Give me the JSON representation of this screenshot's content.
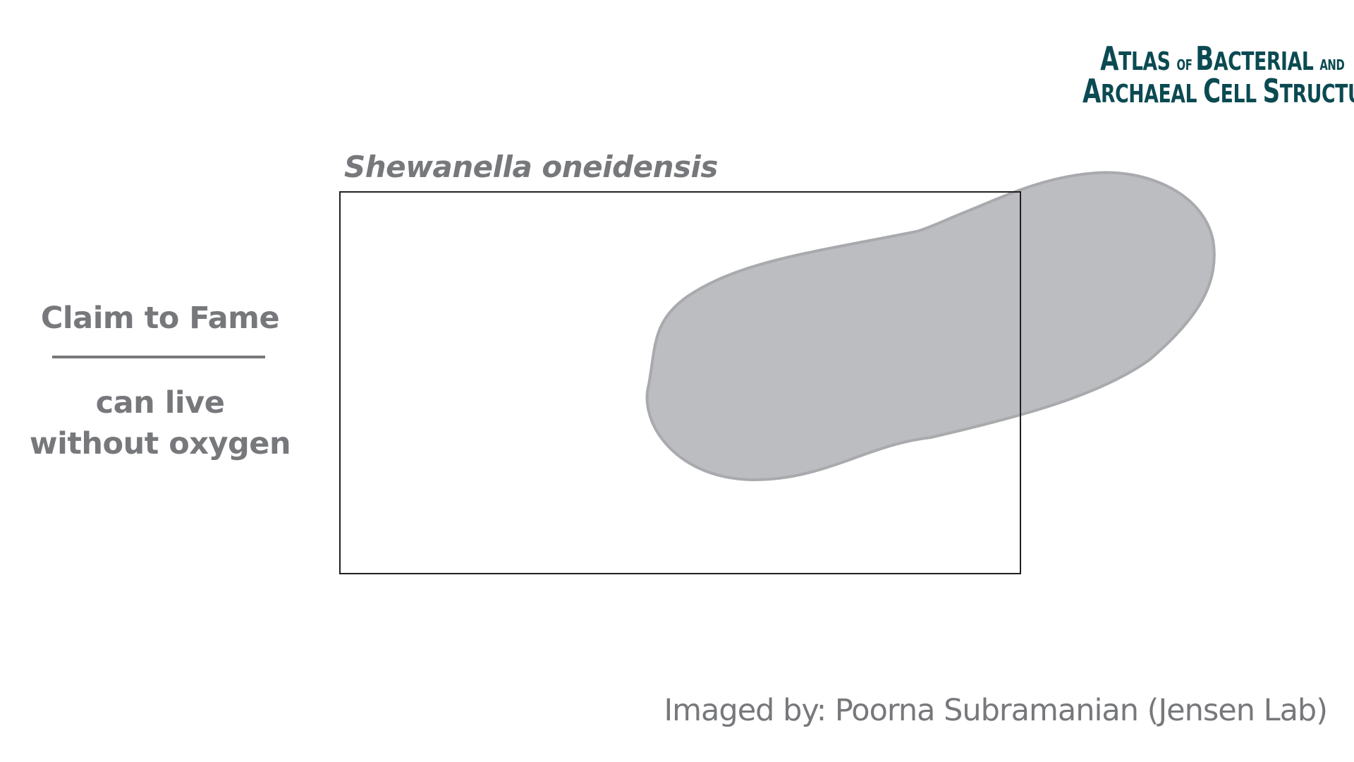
{
  "logo": {
    "line1": [
      {
        "text": "A",
        "size": "big"
      },
      {
        "text": "tlas ",
        "size": "mid"
      },
      {
        "text": "of ",
        "size": "small"
      },
      {
        "text": "B",
        "size": "big"
      },
      {
        "text": "acterial ",
        "size": "mid"
      },
      {
        "text": "and",
        "size": "small"
      }
    ],
    "line2": [
      {
        "text": "A",
        "size": "big"
      },
      {
        "text": "rchaeal ",
        "size": "mid"
      },
      {
        "text": "C",
        "size": "big"
      },
      {
        "text": "ell ",
        "size": "mid"
      },
      {
        "text": "S",
        "size": "big"
      },
      {
        "text": "tructure",
        "size": "mid"
      }
    ],
    "color": "#0b4a52"
  },
  "title": "Shewanella oneidensis",
  "claim": {
    "heading": "Claim to Fame",
    "text_lines": [
      "can live",
      "without oxygen"
    ]
  },
  "credit": "Imaged by: Poorna Subramanian (Jensen Lab)",
  "colors": {
    "text": "#77787b",
    "cell_fill": "#bcbdc0",
    "cell_stroke": "#a9aaad",
    "frame": "#231f20"
  }
}
